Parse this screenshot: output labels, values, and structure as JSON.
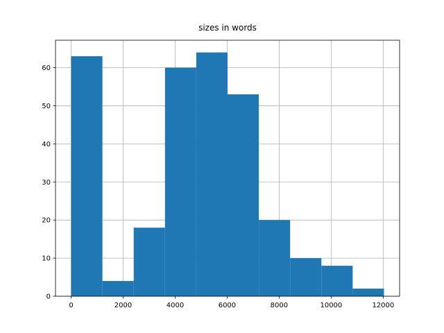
{
  "chart_data": {
    "type": "histogram",
    "title": "sizes in words",
    "bins": [
      0,
      1203,
      2406,
      3609,
      4812,
      6015,
      7218,
      8421,
      9624,
      10827,
      12030
    ],
    "values": [
      63,
      4,
      18,
      60,
      64,
      53,
      20,
      10,
      8,
      2
    ],
    "color": "#1f77b4",
    "xlim": [
      -601,
      12631
    ],
    "xticks": [
      0,
      2000,
      4000,
      6000,
      8000,
      10000,
      12000
    ],
    "ylim": [
      0,
      67.2
    ],
    "yticks": [
      0,
      10,
      20,
      30,
      40,
      50,
      60
    ],
    "grid": true
  }
}
